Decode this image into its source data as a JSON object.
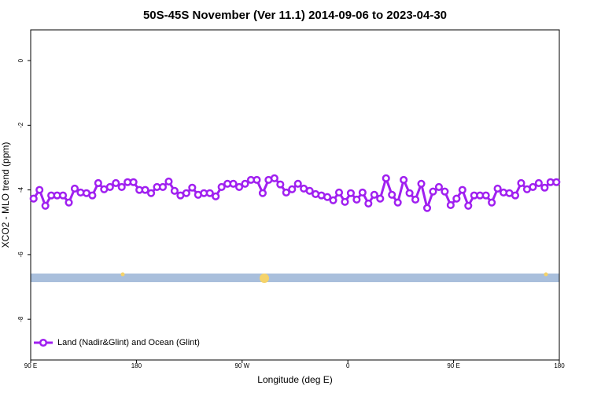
{
  "chart_data": {
    "type": "line",
    "title": "50S-45S November (Ver 11.1)   2014-09-06 to 2023-04-30",
    "x_label": "Longitude (deg E)",
    "y_label": "XCO2 - MLO trend (ppm)",
    "x": [
      92.5,
      97.5,
      102.5,
      107.5,
      112.5,
      117.5,
      122.5,
      127.5,
      132.5,
      137.5,
      142.5,
      147.5,
      152.5,
      157.5,
      162.5,
      167.5,
      172.5,
      177.5,
      182.5,
      187.5,
      192.5,
      197.5,
      202.5,
      207.5,
      212.5,
      217.5,
      222.5,
      227.5,
      232.5,
      237.5,
      242.5,
      247.5,
      252.5,
      257.5,
      262.5,
      267.5,
      272.5,
      277.5,
      282.5,
      287.5,
      292.5,
      297.5,
      302.5,
      307.5,
      312.5,
      317.5,
      322.5,
      327.5,
      332.5,
      337.5,
      342.5,
      347.5,
      352.5,
      357.5,
      362.5,
      367.5,
      372.5,
      377.5,
      382.5,
      387.5,
      392.5,
      397.5,
      402.5,
      407.5,
      412.5,
      417.5,
      422.5,
      427.5,
      432.5,
      437.5,
      442.5,
      447.5,
      452.5,
      457.5,
      462.5,
      467.5,
      472.5,
      477.5,
      482.5,
      487.5,
      492.5,
      497.5,
      502.5,
      507.5,
      512.5,
      517.5,
      522.5,
      527.5,
      532.5,
      537.5
    ],
    "series": [
      {
        "name": "Land (Nadir&Glint) and Ocean (Glint)",
        "color": "#a020f0",
        "values": [
          -4.27,
          -4.0,
          -4.49,
          -4.17,
          -4.17,
          -4.17,
          -4.39,
          -3.96,
          -4.08,
          -4.1,
          -4.17,
          -3.79,
          -3.98,
          -3.91,
          -3.79,
          -3.91,
          -3.76,
          -3.76,
          -4.0,
          -4.0,
          -4.1,
          -3.91,
          -3.91,
          -3.74,
          -4.03,
          -4.17,
          -4.1,
          -3.93,
          -4.15,
          -4.1,
          -4.1,
          -4.2,
          -3.91,
          -3.81,
          -3.81,
          -3.91,
          -3.81,
          -3.69,
          -3.69,
          -4.1,
          -3.69,
          -3.64,
          -3.83,
          -4.08,
          -3.98,
          -3.81,
          -3.96,
          -4.03,
          -4.13,
          -4.17,
          -4.22,
          -4.32,
          -4.08,
          -4.37,
          -4.1,
          -4.3,
          -4.08,
          -4.42,
          -4.15,
          -4.27,
          -3.64,
          -4.15,
          -4.39,
          -3.69,
          -4.1,
          -4.3,
          -3.81,
          -4.56,
          -4.05,
          -3.91,
          -4.05,
          -4.47,
          -4.27,
          -4.0,
          -4.49,
          -4.17,
          -4.17,
          -4.17,
          -4.39,
          -3.96,
          -4.08,
          -4.1,
          -4.17,
          -3.79,
          -3.98,
          -3.91,
          -3.79,
          -3.93,
          -3.76,
          -3.76
        ]
      }
    ],
    "xlim": [
      90,
      540
    ],
    "xticks": [
      {
        "value": 90,
        "label": "90 E"
      },
      {
        "value": 180,
        "label": "180"
      },
      {
        "value": 270,
        "label": "90 W"
      },
      {
        "value": 360,
        "label": "0"
      },
      {
        "value": 450,
        "label": "90 E"
      },
      {
        "value": 540,
        "label": "180"
      }
    ],
    "ylim": [
      -9.26,
      0.95
    ],
    "yticks": [
      0,
      -2,
      -4,
      -6,
      -8
    ],
    "legend": "bottom-left"
  }
}
